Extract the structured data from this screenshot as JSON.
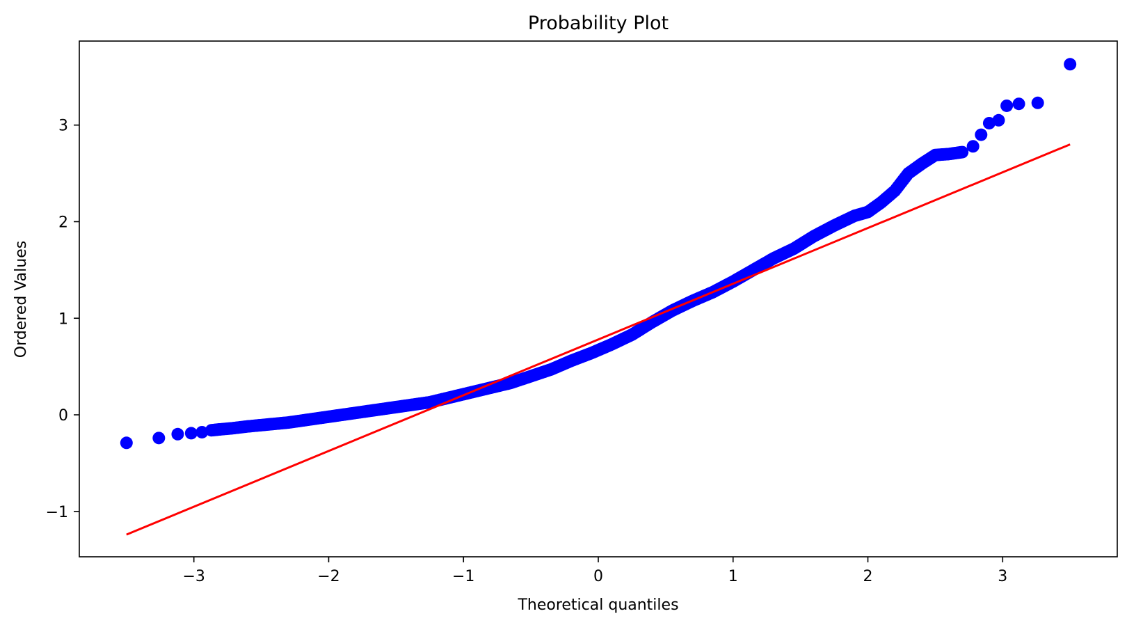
{
  "chart_data": {
    "type": "scatter",
    "title": "Probability Plot",
    "xlabel": "Theoretical quantiles",
    "ylabel": "Ordered Values",
    "xlim": [
      -3.85,
      3.85
    ],
    "ylim": [
      -1.47,
      3.87
    ],
    "xticks": [
      -3,
      -2,
      -1,
      0,
      1,
      2,
      3
    ],
    "xtick_labels": [
      "−3",
      "−2",
      "−1",
      "0",
      "1",
      "2",
      "3"
    ],
    "yticks": [
      -1,
      0,
      1,
      2,
      3
    ],
    "ytick_labels": [
      "−1",
      "0",
      "1",
      "2",
      "3"
    ],
    "grid": false,
    "colors": {
      "points": "#0000ff",
      "fit_line": "#ff0000",
      "axes": "#000000",
      "background": "#ffffff"
    },
    "series": [
      {
        "kind": "points",
        "x": [
          -3.5,
          -3.26,
          -3.12,
          -3.02,
          -2.94,
          -2.87,
          -2.8,
          -2.72,
          -2.6,
          -2.45,
          -2.3,
          -2.15,
          -2.0,
          -1.85,
          -1.7,
          -1.55,
          -1.4,
          -1.25,
          -1.1,
          -0.95,
          -0.8,
          -0.65,
          -0.5,
          -0.35,
          -0.2,
          -0.05,
          0.1,
          0.25,
          0.4,
          0.55,
          0.7,
          0.85,
          1.0,
          1.15,
          1.3,
          1.45,
          1.6,
          1.75,
          1.9,
          2.0,
          2.1,
          2.2,
          2.3,
          2.4,
          2.5,
          2.6,
          2.7,
          2.78,
          2.84,
          2.9,
          2.97,
          3.03,
          3.12,
          3.26,
          3.5
        ],
        "y": [
          -0.29,
          -0.24,
          -0.2,
          -0.19,
          -0.18,
          -0.16,
          -0.15,
          -0.14,
          -0.12,
          -0.1,
          -0.08,
          -0.05,
          -0.02,
          0.01,
          0.04,
          0.07,
          0.1,
          0.13,
          0.18,
          0.23,
          0.28,
          0.33,
          0.4,
          0.47,
          0.56,
          0.64,
          0.73,
          0.83,
          0.96,
          1.08,
          1.18,
          1.27,
          1.38,
          1.5,
          1.62,
          1.72,
          1.85,
          1.96,
          2.06,
          2.1,
          2.2,
          2.32,
          2.5,
          2.6,
          2.69,
          2.7,
          2.72,
          2.78,
          2.9,
          3.02,
          3.05,
          3.2,
          3.22,
          3.23,
          3.63
        ]
      },
      {
        "kind": "fit_line",
        "x": [
          -3.5,
          3.5
        ],
        "y": [
          -1.24,
          2.8
        ]
      }
    ]
  }
}
